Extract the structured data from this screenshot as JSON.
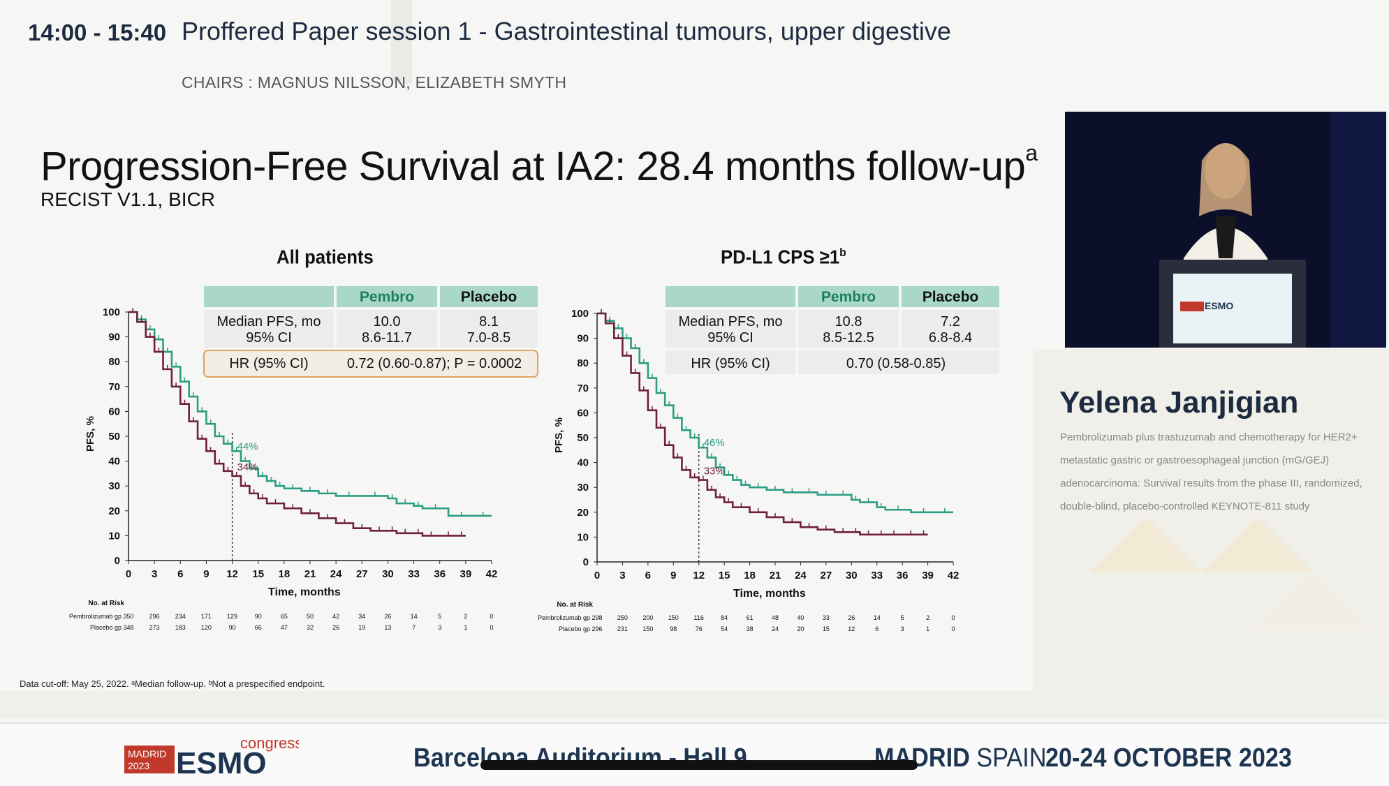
{
  "header": {
    "time": "14:00 - 15:40",
    "session": "Proffered Paper session 1 - Gastrointestinal tumours, upper digestive",
    "chairs": "CHAIRS : MAGNUS NILSSON, ELIZABETH SMYTH"
  },
  "slide": {
    "title": "Progression-Free Survival at IA2: 28.4 months follow-up",
    "title_sup": "a",
    "subtitle": "RECIST V1.1, BICR",
    "footnote": "Data cut-off: May 25, 2022. ᵃMedian follow-up. ᵇNot a prespecified endpoint."
  },
  "speaker": {
    "name": "Yelena Janjigian",
    "talk": "Pembrolizumab plus trastuzumab and chemotherapy for HER2+ metastatic gastric or gastroesophageal junction (mG/GEJ) adenocarcinoma: Survival results from the phase III, randomized, double-blind, placebo-controlled KEYNOTE-811 study",
    "podium_logo": "ESMO"
  },
  "footer": {
    "logo_madrid": "MADRID",
    "logo_year": "2023",
    "logo_esmo": "ESMO",
    "logo_congress": "congress",
    "venue": "Barcelona Auditorium - Hall 9",
    "city_bold": "MADRID",
    "city_rest": "SPAIN",
    "dates": "20-24 OCTOBER 2023"
  },
  "colors": {
    "pembro": "#2a9d84",
    "placebo": "#6e1f3e",
    "table_header": "#a9d8c6",
    "table_header_text": "#1f7d63",
    "hr_border": "#e0a45a",
    "navy": "#1d2b40"
  },
  "chart_data": [
    {
      "type": "line",
      "title": "All patients",
      "title_sup": "",
      "xlabel": "Time, months",
      "ylabel": "PFS, %",
      "xlim": [
        0,
        42
      ],
      "ylim": [
        0,
        100
      ],
      "xticks": [
        "0",
        "3",
        "6",
        "9",
        "12",
        "15",
        "18",
        "21",
        "24",
        "27",
        "30",
        "33",
        "36",
        "39",
        "42"
      ],
      "yticks": [
        "0",
        "10",
        "20",
        "30",
        "40",
        "50",
        "60",
        "70",
        "80",
        "90",
        "100"
      ],
      "marker_x": 12,
      "series": [
        {
          "key": "pembro",
          "x": [
            0,
            1,
            2,
            3,
            4,
            5,
            6,
            7,
            8,
            9,
            10,
            11,
            12,
            13,
            14,
            15,
            16,
            17,
            18,
            20,
            22,
            24,
            27,
            30,
            31,
            33,
            34,
            37,
            40,
            42
          ],
          "y": [
            100,
            97,
            93,
            89,
            84,
            78,
            72,
            66,
            60,
            55,
            50,
            47,
            44,
            40,
            37,
            34,
            32,
            30,
            29,
            28,
            27,
            26,
            26,
            25,
            23,
            22,
            21,
            18,
            18,
            18
          ],
          "label": "44%"
        },
        {
          "key": "placebo",
          "x": [
            0,
            1,
            2,
            3,
            4,
            5,
            6,
            7,
            8,
            9,
            10,
            11,
            12,
            13,
            14,
            15,
            16,
            18,
            20,
            22,
            24,
            26,
            28,
            30,
            31,
            33,
            34,
            36,
            38,
            39
          ],
          "y": [
            100,
            96,
            90,
            84,
            77,
            70,
            63,
            56,
            49,
            44,
            39,
            36,
            34,
            30,
            27,
            25,
            23,
            21,
            19,
            17,
            15,
            13,
            12,
            12,
            11,
            11,
            10,
            10,
            10,
            10
          ],
          "label": "34%"
        }
      ],
      "table": {
        "headers": [
          "",
          "Pembro",
          "Placebo"
        ],
        "rows": [
          {
            "label1": "Median PFS, mo",
            "label2": "95% CI",
            "pembro1": "10.0",
            "pembro2": "8.6-11.7",
            "placebo1": "8.1",
            "placebo2": "7.0-8.5"
          }
        ],
        "hr_label": "HR (95% CI)",
        "hr_value": "0.72 (0.60-0.87); P = 0.0002"
      },
      "risk": {
        "title": "No. at Risk",
        "rows": [
          {
            "label": "Pembrolizumab gp",
            "values": [
              "350",
              "296",
              "234",
              "171",
              "129",
              "90",
              "65",
              "50",
              "42",
              "34",
              "26",
              "14",
              "5",
              "2",
              "0"
            ]
          },
          {
            "label": "Placebo gp",
            "values": [
              "348",
              "273",
              "183",
              "120",
              "90",
              "66",
              "47",
              "32",
              "26",
              "19",
              "13",
              "7",
              "3",
              "1",
              "0"
            ]
          }
        ]
      }
    },
    {
      "type": "line",
      "title": "PD-L1 CPS ≥1",
      "title_sup": "b",
      "xlabel": "Time, months",
      "ylabel": "PFS, %",
      "xlim": [
        0,
        42
      ],
      "ylim": [
        0,
        100
      ],
      "xticks": [
        "0",
        "3",
        "6",
        "9",
        "12",
        "15",
        "18",
        "21",
        "24",
        "27",
        "30",
        "33",
        "36",
        "39",
        "42"
      ],
      "yticks": [
        "0",
        "10",
        "20",
        "30",
        "40",
        "50",
        "60",
        "70",
        "80",
        "90",
        "100"
      ],
      "marker_x": 12,
      "series": [
        {
          "key": "pembro",
          "x": [
            0,
            1,
            2,
            3,
            4,
            5,
            6,
            7,
            8,
            9,
            10,
            11,
            12,
            13,
            14,
            15,
            16,
            17,
            18,
            20,
            22,
            24,
            26,
            28,
            30,
            31,
            33,
            34,
            37,
            40,
            42
          ],
          "y": [
            100,
            97,
            94,
            90,
            86,
            80,
            74,
            68,
            63,
            58,
            53,
            50,
            46,
            42,
            38,
            35,
            33,
            31,
            30,
            29,
            28,
            28,
            27,
            27,
            25,
            24,
            22,
            21,
            20,
            20,
            20
          ],
          "label": "46%"
        },
        {
          "key": "placebo",
          "x": [
            0,
            1,
            2,
            3,
            4,
            5,
            6,
            7,
            8,
            9,
            10,
            11,
            12,
            13,
            14,
            15,
            16,
            18,
            20,
            22,
            24,
            26,
            28,
            30,
            31,
            33,
            34,
            36,
            38,
            39
          ],
          "y": [
            100,
            96,
            90,
            83,
            76,
            69,
            61,
            54,
            47,
            42,
            37,
            34,
            33,
            29,
            26,
            24,
            22,
            20,
            18,
            16,
            14,
            13,
            12,
            12,
            11,
            11,
            11,
            11,
            11,
            11
          ],
          "label": "33%"
        }
      ],
      "table": {
        "headers": [
          "",
          "Pembro",
          "Placebo"
        ],
        "rows": [
          {
            "label1": "Median PFS, mo",
            "label2": "95% CI",
            "pembro1": "10.8",
            "pembro2": "8.5-12.5",
            "placebo1": "7.2",
            "placebo2": "6.8-8.4"
          }
        ],
        "hr_label": "HR (95% CI)",
        "hr_value": "0.70 (0.58-0.85)"
      },
      "risk": {
        "title": "No. at Risk",
        "rows": [
          {
            "label": "Pembrolizumab gp",
            "values": [
              "298",
              "250",
              "200",
              "150",
              "116",
              "84",
              "61",
              "48",
              "40",
              "33",
              "26",
              "14",
              "5",
              "2",
              "0"
            ]
          },
          {
            "label": "Placebo gp",
            "values": [
              "296",
              "231",
              "150",
              "98",
              "76",
              "54",
              "38",
              "24",
              "20",
              "15",
              "12",
              "6",
              "3",
              "1",
              "0"
            ]
          }
        ]
      }
    }
  ]
}
